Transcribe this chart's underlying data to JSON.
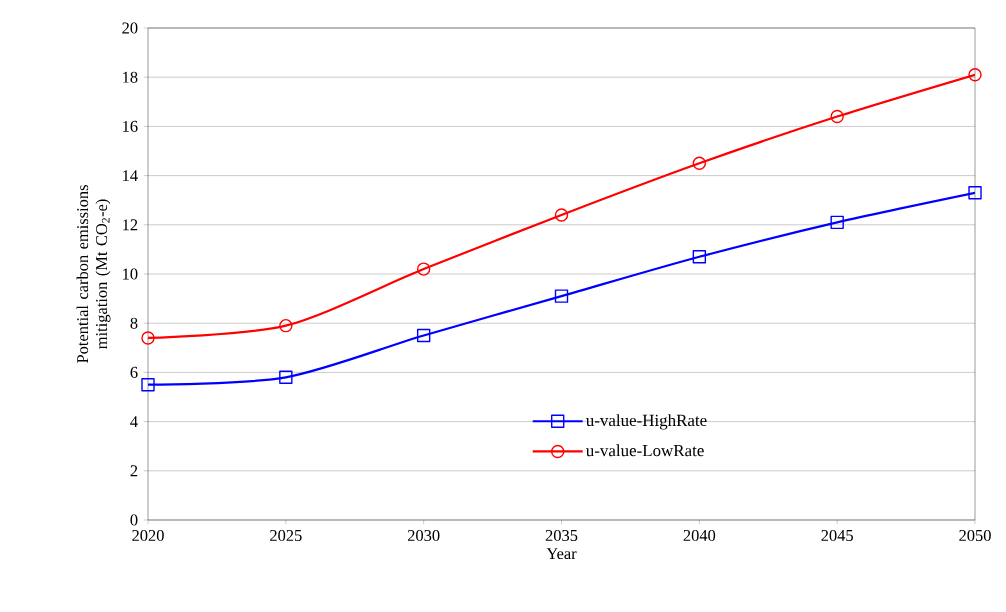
{
  "chart_data": {
    "type": "line",
    "xlabel": "Year",
    "ylabel": "Potential carbon emissions mitigation (Mt CO$_{2}$-e)",
    "x": [
      2020,
      2025,
      2030,
      2035,
      2040,
      2045,
      2050
    ],
    "series": [
      {
        "name": "u-value-HighRate",
        "color": "#0000ff",
        "marker": "square",
        "values": [
          5.5,
          5.8,
          7.5,
          9.1,
          10.7,
          12.1,
          13.3
        ]
      },
      {
        "name": "u-value-LowRate",
        "color": "#ff0000",
        "marker": "circle",
        "values": [
          7.4,
          7.9,
          10.2,
          12.4,
          14.5,
          16.4,
          18.1
        ]
      }
    ],
    "xlim": [
      2020,
      2050
    ],
    "xticks": [
      2020,
      2025,
      2030,
      2035,
      2040,
      2045,
      2050
    ],
    "ylim": [
      0,
      20
    ],
    "yticks": [
      0,
      2,
      4,
      6,
      8,
      10,
      12,
      14,
      16,
      18,
      20
    ],
    "grid": "y",
    "legend": "bottom right",
    "line_style": "solid"
  }
}
